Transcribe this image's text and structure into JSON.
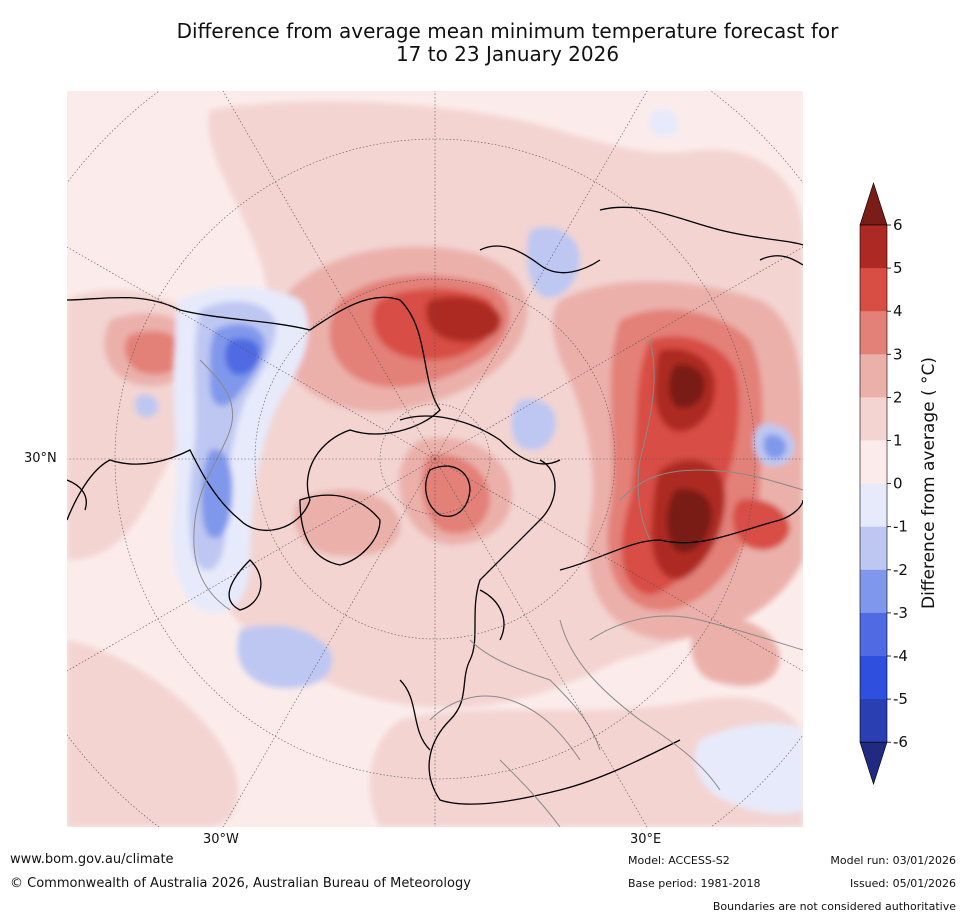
{
  "title": {
    "line1": "Difference from average mean minimum temperature forecast for",
    "line2": "17 to 23 January 2026"
  },
  "map": {
    "projection": "north polar stereographic",
    "labels": {
      "lon_west": "30°W",
      "lon_east": "30°E",
      "lat": "30°N"
    }
  },
  "colorbar": {
    "label": "Difference from average ( °C)",
    "ticks": [
      "6",
      "5",
      "4",
      "3",
      "2",
      "1",
      "0",
      "-1",
      "-2",
      "-3",
      "-4",
      "-5",
      "-6"
    ],
    "colors": [
      "#1f2a80",
      "#2a3fb2",
      "#2f50de",
      "#4f6ae2",
      "#8098eb",
      "#bec7f2",
      "#e7eafa",
      "#fbeceb",
      "#f3d4d1",
      "#ebb0aa",
      "#e38078",
      "#d84d44",
      "#ad2a24",
      "#7a1c17"
    ]
  },
  "footer": {
    "url": "www.bom.gov.au/climate",
    "copyright": "© Commonwealth of Australia 2026, Australian Bureau of Meteorology",
    "model": "Model: ACCESS-S2",
    "base_period": "Base period: 1981-2018",
    "model_run": "Model run: 03/01/2026",
    "issued": "Issued: 05/01/2026",
    "disclaimer": "Boundaries are not considered authoritative"
  }
}
